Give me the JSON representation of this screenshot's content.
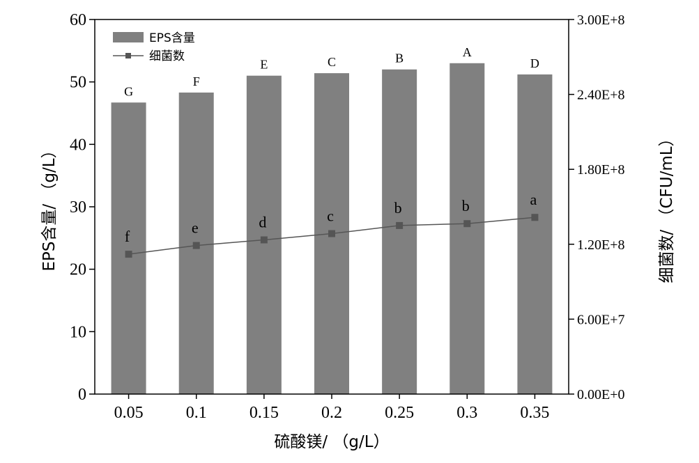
{
  "chart_data": {
    "type": "bar",
    "categories": [
      "0.05",
      "0.1",
      "0.15",
      "0.2",
      "0.25",
      "0.3",
      "0.35"
    ],
    "xlabel": "硫酸镁/ （g/L）",
    "ylabel_left": "EPS含量/ （g/L）",
    "ylabel_right": "细菌数/ （CFU/mL）",
    "ylim_left": [
      0,
      60
    ],
    "ylim_right": [
      0,
      300000000
    ],
    "yticks_left": [
      0,
      10,
      20,
      30,
      40,
      50,
      60
    ],
    "yticks_right": [
      0,
      60000000,
      120000000,
      180000000,
      240000000,
      300000000
    ],
    "yticks_right_labels": [
      "0.00E+0",
      "6.00E+7",
      "1.20E+8",
      "1.80E+8",
      "2.40E+8",
      "3.00E+8"
    ],
    "grid": false,
    "legend_position": "top-left",
    "series": [
      {
        "name": "EPS含量",
        "kind": "bar",
        "axis": "left",
        "color": "#808080",
        "values": [
          46.7,
          48.3,
          51.0,
          51.4,
          52.0,
          53.0,
          51.2
        ],
        "labels": [
          "G",
          "F",
          "E",
          "C",
          "B",
          "A",
          "D"
        ]
      },
      {
        "name": "细菌数",
        "kind": "line",
        "axis": "right",
        "color": "#555555",
        "values": [
          112000000,
          119000000,
          123500000,
          128500000,
          135000000,
          136500000,
          141500000
        ],
        "labels": [
          "f",
          "e",
          "d",
          "c",
          "b",
          "b",
          "a"
        ]
      }
    ]
  }
}
